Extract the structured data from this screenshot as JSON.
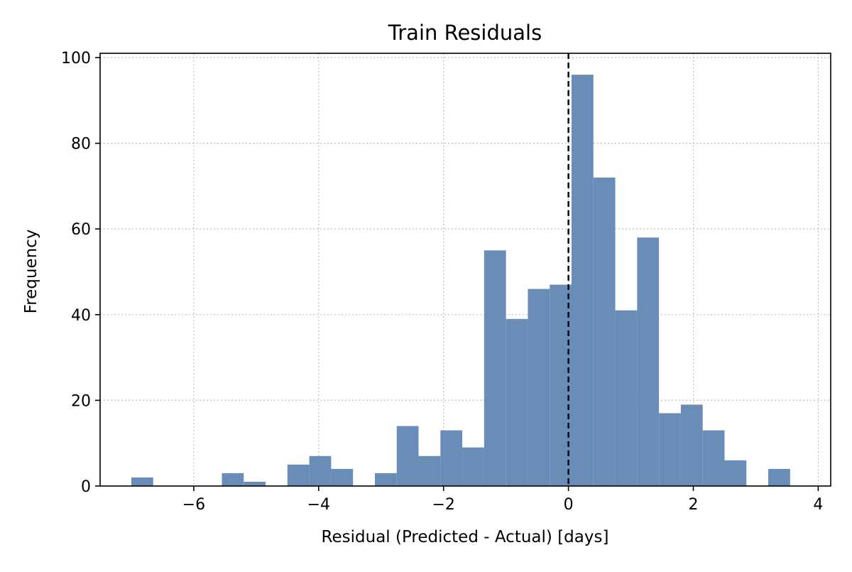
{
  "chart_data": {
    "type": "bar",
    "title": "Train Residuals",
    "xlabel": "Residual (Predicted - Actual) [days]",
    "ylabel": "Frequency",
    "xlim": [
      -7.5,
      4.2
    ],
    "ylim": [
      0,
      101
    ],
    "grid": true,
    "bar_color": "#6a8db7",
    "reference_line": {
      "x": 0,
      "color": "#000000",
      "style": "dashed"
    },
    "x_ticks": [
      -6,
      -4,
      -2,
      0,
      2,
      4
    ],
    "x_tick_labels": [
      "−6",
      "−4",
      "−2",
      "0",
      "2",
      "4"
    ],
    "y_ticks": [
      0,
      20,
      40,
      60,
      80,
      100
    ],
    "y_tick_labels": [
      "0",
      "20",
      "40",
      "60",
      "80",
      "100"
    ],
    "bins": [
      {
        "start": -7.0,
        "end": -6.65,
        "count": 2
      },
      {
        "start": -5.55,
        "end": -5.2,
        "count": 3
      },
      {
        "start": -5.2,
        "end": -4.85,
        "count": 1
      },
      {
        "start": -4.5,
        "end": -4.15,
        "count": 5
      },
      {
        "start": -4.15,
        "end": -3.8,
        "count": 7
      },
      {
        "start": -3.8,
        "end": -3.45,
        "count": 4
      },
      {
        "start": -3.1,
        "end": -2.75,
        "count": 3
      },
      {
        "start": -2.75,
        "end": -2.4,
        "count": 14
      },
      {
        "start": -2.4,
        "end": -2.05,
        "count": 7
      },
      {
        "start": -2.05,
        "end": -1.7,
        "count": 13
      },
      {
        "start": -1.7,
        "end": -1.35,
        "count": 9
      },
      {
        "start": -1.35,
        "end": -1.0,
        "count": 55
      },
      {
        "start": -1.0,
        "end": -0.65,
        "count": 39
      },
      {
        "start": -0.65,
        "end": -0.3,
        "count": 46
      },
      {
        "start": -0.3,
        "end": 0.05,
        "count": 47
      },
      {
        "start": 0.05,
        "end": 0.4,
        "count": 96
      },
      {
        "start": 0.4,
        "end": 0.75,
        "count": 72
      },
      {
        "start": 0.75,
        "end": 1.1,
        "count": 41
      },
      {
        "start": 1.1,
        "end": 1.45,
        "count": 58
      },
      {
        "start": 1.45,
        "end": 1.8,
        "count": 17
      },
      {
        "start": 1.8,
        "end": 2.15,
        "count": 19
      },
      {
        "start": 2.15,
        "end": 2.5,
        "count": 13
      },
      {
        "start": 2.5,
        "end": 2.85,
        "count": 6
      },
      {
        "start": 3.2,
        "end": 3.55,
        "count": 4
      }
    ]
  }
}
